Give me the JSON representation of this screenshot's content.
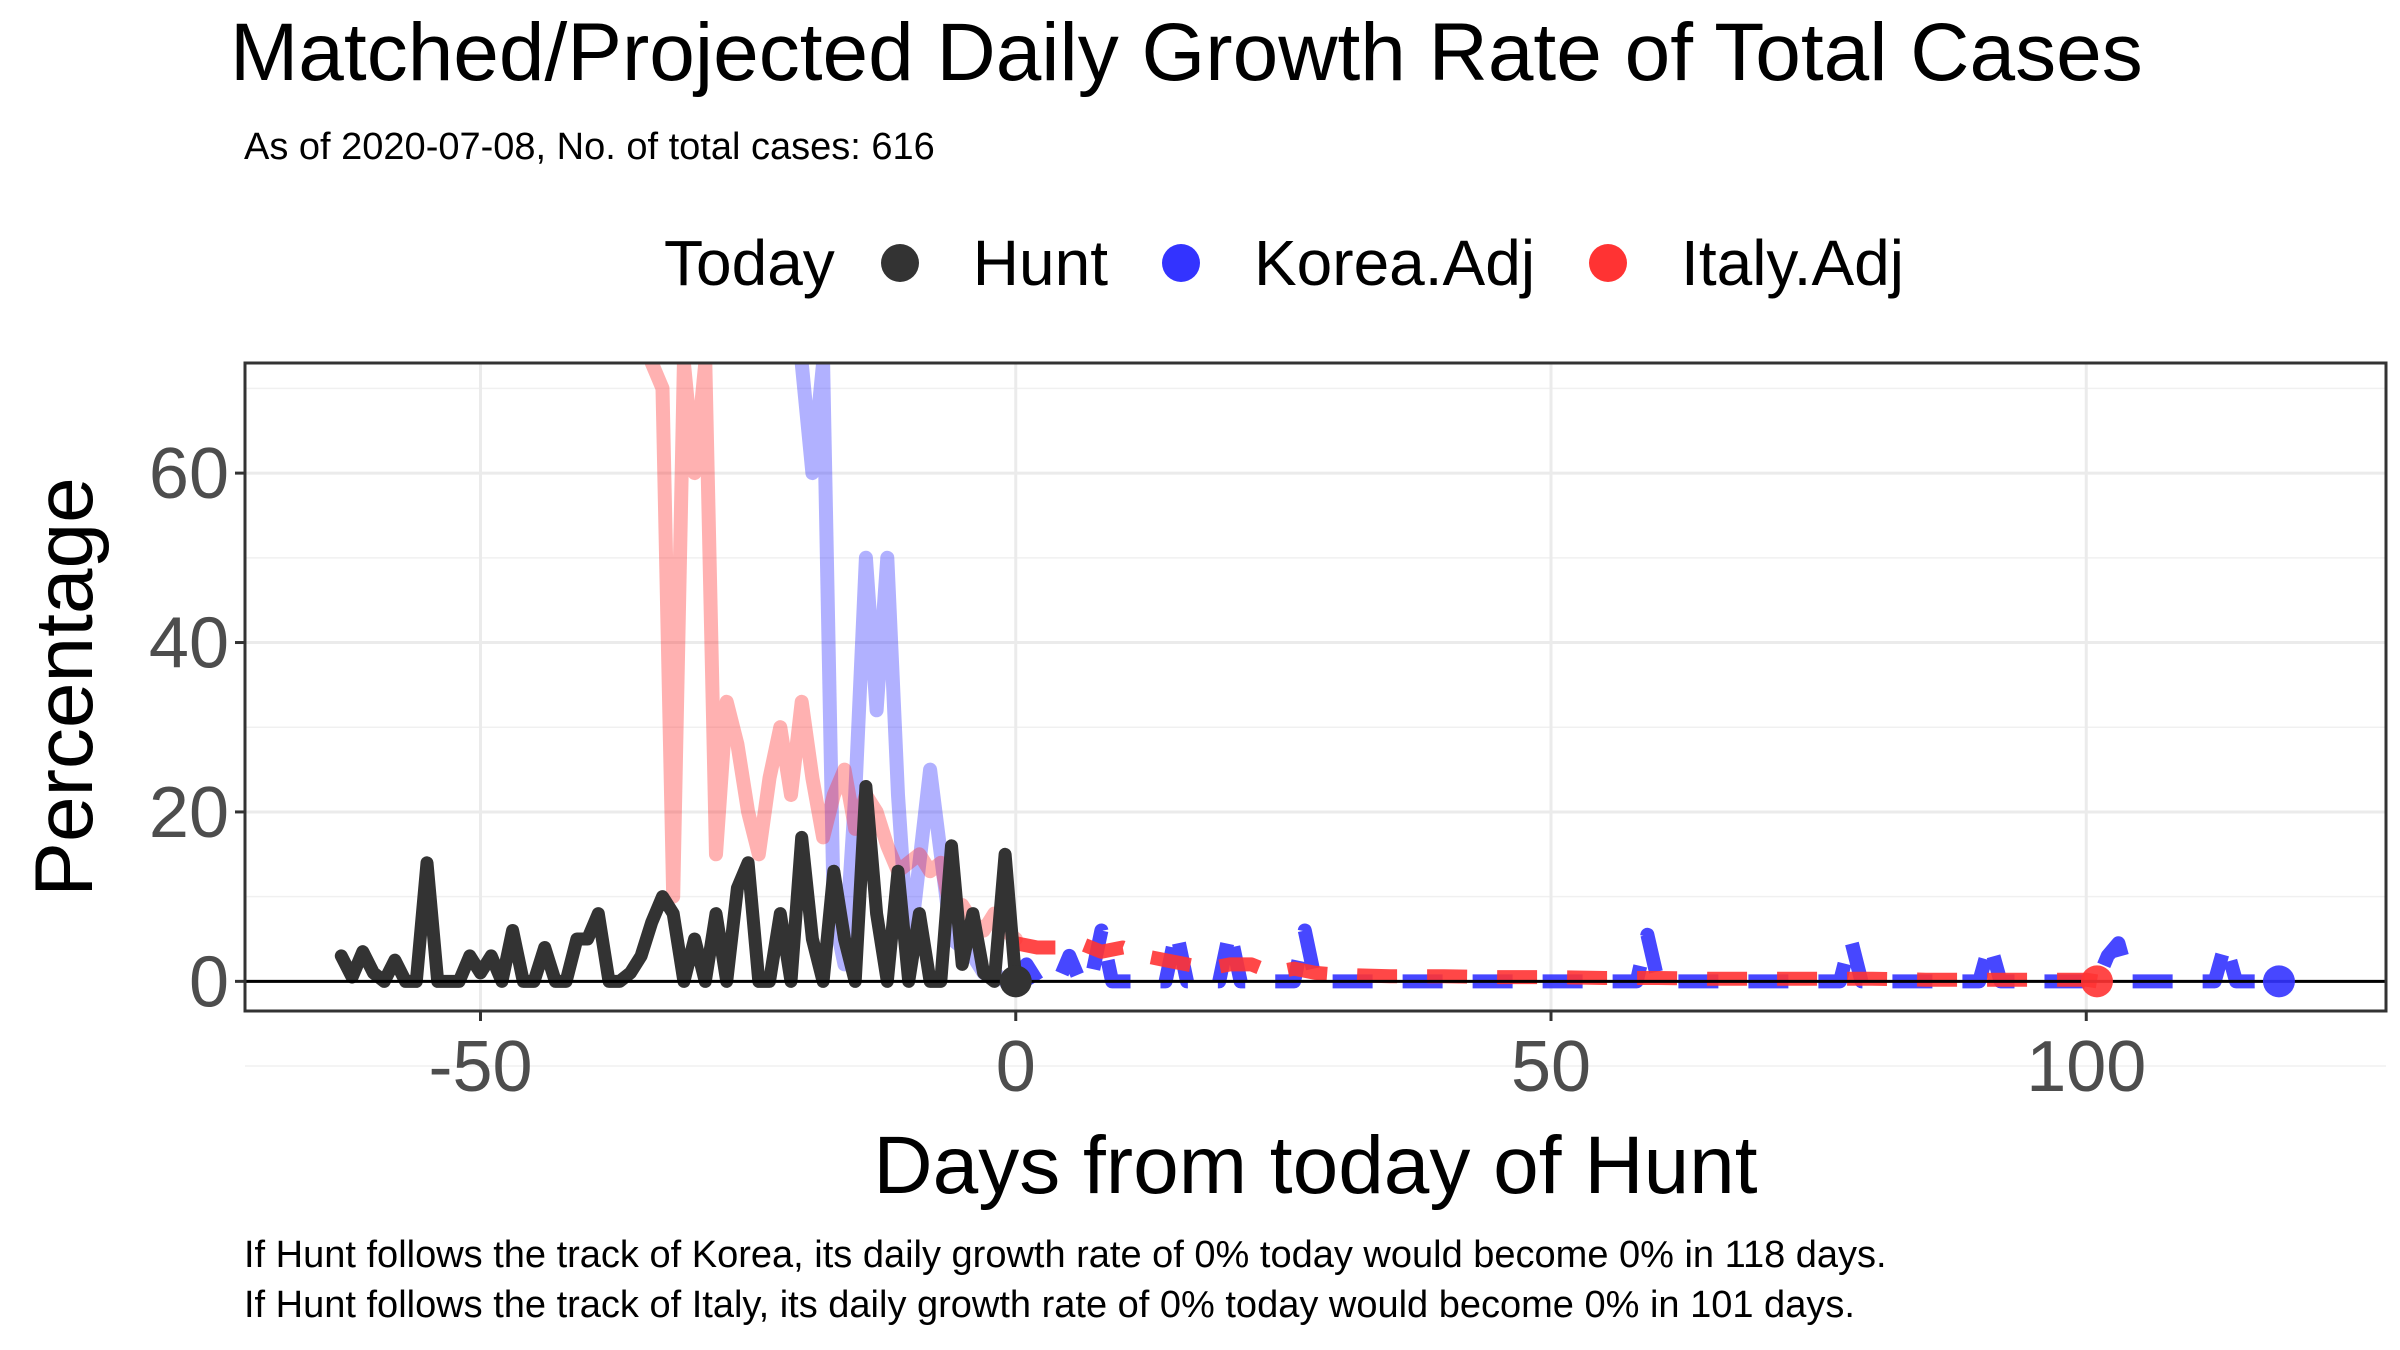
{
  "chart_data": {
    "type": "line",
    "title": "Matched/Projected Daily Growth Rate of Total Cases",
    "subtitle": "As of 2020-07-08, No. of total cases: 616",
    "xlabel": "Days from today of Hunt",
    "ylabel": "Percentage",
    "xlim": [
      -72,
      128
    ],
    "ylim": [
      -3.5,
      73
    ],
    "xticks": [
      -50,
      0,
      50,
      100
    ],
    "xtick_labels": [
      "-50",
      "0",
      "50",
      "100"
    ],
    "yticks": [
      0,
      20,
      40,
      60
    ],
    "ytick_labels": [
      "0",
      "20",
      "40",
      "60"
    ],
    "grid": true,
    "legend": {
      "title": "Today",
      "position": "top",
      "entries": [
        {
          "name": "Hunt",
          "color": "#333333"
        },
        {
          "name": "Korea.Adj",
          "color": "#3333ff"
        },
        {
          "name": "Italy.Adj",
          "color": "#ff3333"
        }
      ]
    },
    "series": [
      {
        "name": "Hunt",
        "color": "#333333",
        "style": "solid",
        "x": [
          -63,
          -62,
          -61,
          -60,
          -59,
          -58,
          -57,
          -56,
          -55,
          -54,
          -53,
          -52,
          -51,
          -50,
          -49,
          -48,
          -47,
          -46,
          -45,
          -44,
          -43,
          -42,
          -41,
          -40,
          -39,
          -38,
          -37,
          -36,
          -35,
          -34,
          -33,
          -32,
          -31,
          -30,
          -29,
          -28,
          -27,
          -26,
          -25,
          -24,
          -23,
          -22,
          -21,
          -20,
          -19,
          -18,
          -17,
          -16,
          -15,
          -14,
          -13,
          -12,
          -11,
          -10,
          -9,
          -8,
          -7,
          -6,
          -5,
          -4,
          -3,
          -2,
          -1,
          0
        ],
        "y": [
          3,
          0.5,
          3.5,
          1,
          0,
          2.5,
          0,
          0,
          14,
          0,
          0,
          0,
          3,
          1,
          3,
          0,
          6,
          0,
          0,
          4,
          0,
          0,
          5,
          5,
          8,
          0,
          0,
          1,
          3,
          7,
          10,
          8,
          0,
          5,
          0,
          8,
          0,
          11,
          14,
          0,
          0,
          8,
          0,
          17,
          5,
          0,
          13,
          5,
          0,
          23,
          8,
          0,
          13,
          0,
          8,
          0,
          0,
          16,
          2,
          8,
          1,
          0,
          15,
          0
        ]
      },
      {
        "name": "Korea.Adj",
        "color": "#3333ff",
        "style": "solid-faded",
        "x": [
          -20,
          -19,
          -18,
          -17,
          -16,
          -15,
          -14,
          -13,
          -12,
          -11,
          -10,
          -9,
          -8,
          -7,
          -6,
          -5,
          -4,
          -3,
          -2,
          -1,
          0
        ],
        "y": [
          73,
          60,
          73,
          8,
          2,
          22,
          50,
          32,
          50,
          22,
          3,
          14,
          25,
          15,
          5,
          4,
          3,
          1,
          1,
          0,
          0
        ]
      },
      {
        "name": "Korea.Adj",
        "color": "#3333ff",
        "style": "dashed-projection",
        "x": [
          0,
          1,
          2,
          3,
          4,
          5,
          6,
          7,
          8,
          9,
          10,
          11,
          12,
          13,
          14,
          15,
          16,
          17,
          18,
          19,
          20,
          21,
          22,
          23,
          24,
          25,
          26,
          27,
          28,
          29,
          30,
          31,
          32,
          33,
          34,
          35,
          36,
          37,
          38,
          39,
          40,
          45,
          50,
          55,
          58,
          59,
          60,
          61,
          62,
          65,
          70,
          75,
          77,
          78,
          79,
          80,
          85,
          90,
          91,
          92,
          93,
          95,
          100,
          101,
          102,
          103,
          104,
          105,
          110,
          112,
          113,
          114,
          115,
          118
        ],
        "y": [
          0,
          2,
          0,
          0,
          0,
          3,
          0,
          0,
          6,
          0,
          0,
          0,
          0,
          0,
          0,
          6,
          0,
          0,
          0,
          0,
          6,
          0,
          0,
          0,
          0,
          0,
          0,
          6,
          0,
          0,
          0,
          0,
          0,
          0,
          0,
          0,
          0,
          0,
          0,
          0,
          0,
          0,
          0,
          0,
          0,
          5.5,
          0,
          0,
          0,
          0,
          0,
          0,
          0,
          5,
          0,
          0,
          0,
          0,
          4.5,
          0,
          0,
          0,
          0,
          0,
          3,
          4.5,
          0,
          0,
          0,
          0,
          4.5,
          0,
          0,
          0
        ]
      },
      {
        "name": "Italy.Adj",
        "color": "#ff3333",
        "style": "solid-faded",
        "x": [
          -34,
          -33,
          -32,
          -31,
          -30,
          -29,
          -28,
          -27,
          -26,
          -25,
          -24,
          -23,
          -22,
          -21,
          -20,
          -19,
          -18,
          -17,
          -16,
          -15,
          -14,
          -13,
          -12,
          -11,
          -10,
          -9,
          -8,
          -7,
          -6,
          -5,
          -4,
          -3,
          -2,
          -1,
          0
        ],
        "y": [
          73,
          70,
          10,
          73,
          60,
          73,
          15,
          33,
          28,
          20,
          15,
          24,
          30,
          22,
          33,
          24,
          17,
          22,
          25,
          18,
          22,
          20,
          16,
          13,
          14,
          15,
          13,
          14,
          8,
          9,
          7,
          6,
          8,
          6,
          5
        ]
      },
      {
        "name": "Italy.Adj",
        "color": "#ff3333",
        "style": "dashed-projection",
        "x": [
          0,
          2,
          4,
          6,
          8,
          10,
          12,
          14,
          16,
          18,
          20,
          22,
          24,
          26,
          28,
          30,
          32,
          35,
          40,
          45,
          50,
          55,
          60,
          65,
          70,
          75,
          80,
          85,
          90,
          95,
          100,
          101
        ],
        "y": [
          4.5,
          4,
          4,
          4.5,
          3.5,
          4,
          3,
          2.5,
          2,
          1.5,
          2,
          2,
          1,
          1.5,
          1,
          0.8,
          0.7,
          0.6,
          0.6,
          0.5,
          0.5,
          0.4,
          0.4,
          0.3,
          0.3,
          0.3,
          0.3,
          0.2,
          0.2,
          0.2,
          0.2,
          0
        ]
      }
    ],
    "markers": [
      {
        "name": "Hunt",
        "x": 0,
        "y": 0,
        "color": "#333333"
      },
      {
        "name": "Korea.Adj",
        "x": 118,
        "y": 0,
        "color": "#3333ff"
      },
      {
        "name": "Italy.Adj",
        "x": 101,
        "y": 0,
        "color": "#ff3333"
      }
    ]
  },
  "captions": {
    "korea": "If Hunt follows the track of Korea, its daily growth rate of 0% today would become 0% in 118 days.",
    "italy": "If Hunt follows the track of Italy, its daily growth rate of 0% today would become 0% in 101 days."
  }
}
